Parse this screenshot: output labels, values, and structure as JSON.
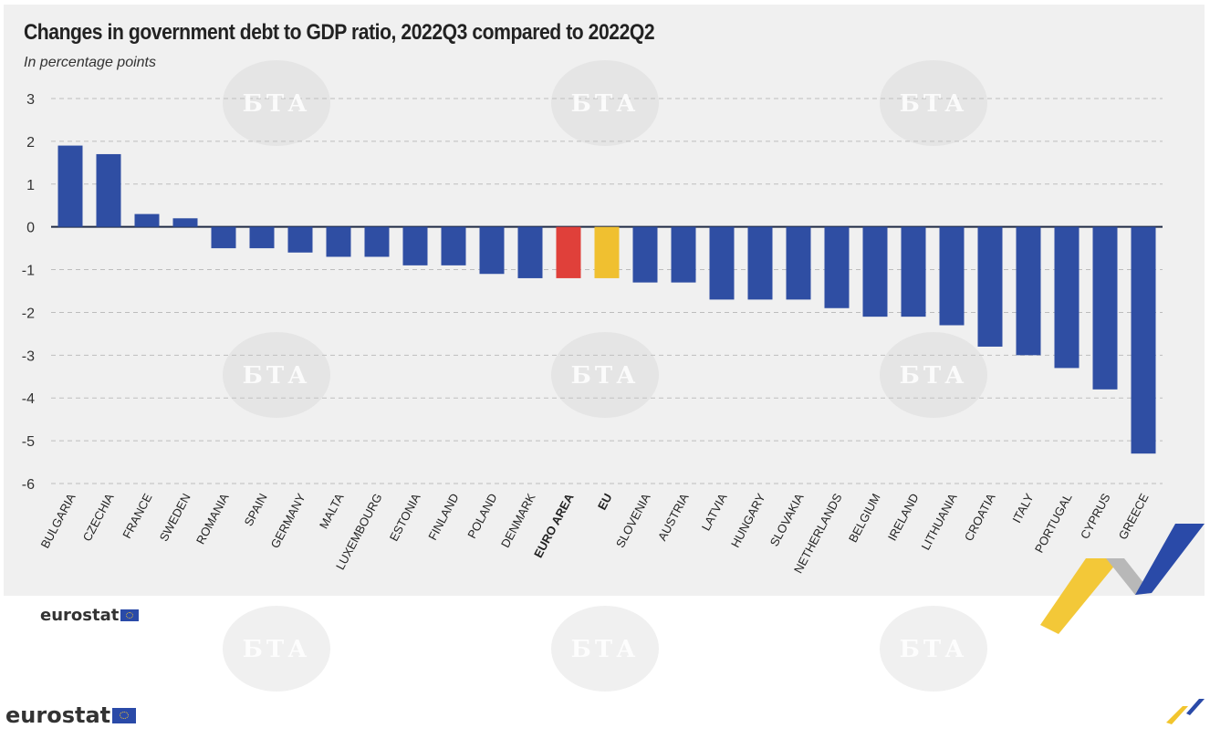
{
  "chart_data": {
    "type": "bar",
    "title": "Changes in government debt to GDP ratio, 2022Q3 compared to 2022Q2",
    "subtitle": "In percentage points",
    "categories": [
      "BULGARIA",
      "CZECHIA",
      "FRANCE",
      "SWEDEN",
      "ROMANIA",
      "SPAIN",
      "GERMANY",
      "MALTA",
      "LUXEMBOURG",
      "ESTONIA",
      "FINLAND",
      "POLAND",
      "DENMARK",
      "EURO AREA",
      "EU",
      "SLOVENIA",
      "AUSTRIA",
      "LATVIA",
      "HUNGARY",
      "SLOVAKIA",
      "NETHERLANDS",
      "BELGIUM",
      "IRELAND",
      "LITHUANIA",
      "CROATIA",
      "ITALY",
      "PORTUGAL",
      "CYPRUS",
      "GREECE"
    ],
    "values": [
      1.9,
      1.7,
      0.3,
      0.2,
      -0.5,
      -0.5,
      -0.6,
      -0.7,
      -0.7,
      -0.9,
      -0.9,
      -1.1,
      -1.2,
      -1.2,
      -1.2,
      -1.3,
      -1.3,
      -1.7,
      -1.7,
      -1.7,
      -1.9,
      -2.1,
      -2.1,
      -2.3,
      -2.8,
      -3.0,
      -3.3,
      -3.8,
      -5.3
    ],
    "highlight": {
      "EURO AREA": "#e0403a",
      "EU": "#f0c030"
    },
    "bold_categories": [
      "EURO AREA",
      "EU"
    ],
    "bar_color": "#2f4ea3",
    "ylim": [
      -6,
      3
    ],
    "yticks": [
      3,
      2,
      1,
      0,
      -1,
      -2,
      -3,
      -4,
      -5,
      -6
    ],
    "grid": true
  },
  "branding": {
    "logo_text": "eurostat",
    "watermark_text": "БТА"
  }
}
